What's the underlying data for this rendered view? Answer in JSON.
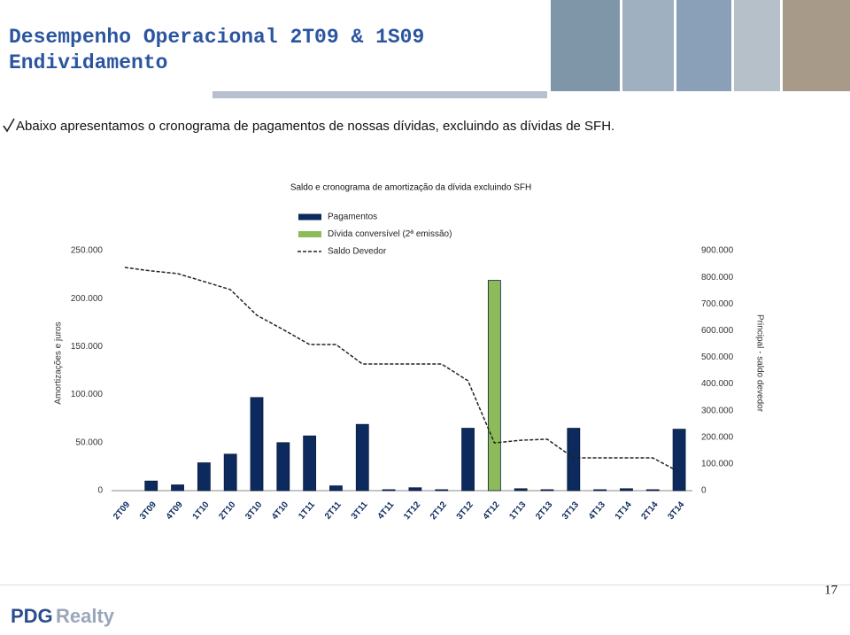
{
  "header": {
    "title": "Desempenho Operacional 2T09 & 1S09",
    "subtitle": "Endividamento"
  },
  "intro": "Abaixo apresentamos o cronograma de pagamentos de nossas dívidas, excluindo as dívidas de SFH.",
  "chart_data": {
    "type": "bar",
    "title": "Saldo e cronograma de amortização da dívida excluindo SFH",
    "ylabel": "Amortizações e juros",
    "y2label": "Principal - saldo devedor",
    "categories": [
      "2T09",
      "3T09",
      "4T09",
      "1T10",
      "2T10",
      "3T10",
      "4T10",
      "1T11",
      "2T11",
      "3T11",
      "4T11",
      "1T12",
      "2T12",
      "3T12",
      "4T12",
      "1T13",
      "2T13",
      "3T13",
      "4T13",
      "1T14",
      "2T14",
      "3T14"
    ],
    "series": [
      {
        "name": "Pagamentos",
        "color": "#0c2a5e",
        "values": [
          0,
          10000,
          6000,
          29000,
          38000,
          97000,
          50000,
          57000,
          5000,
          69000,
          1000,
          3000,
          1000,
          65000,
          null,
          2000,
          1000,
          65000,
          1000,
          2000,
          1000,
          64000
        ]
      },
      {
        "name": "Dívida conversível (2ª emissão)",
        "color": "#8dbb5a",
        "values": [
          null,
          null,
          null,
          null,
          null,
          null,
          null,
          null,
          null,
          null,
          null,
          null,
          null,
          null,
          219000,
          null,
          null,
          null,
          null,
          null,
          null,
          null
        ]
      },
      {
        "name": "Saldo Devedor",
        "type": "line",
        "axis": "y2",
        "color": "#222222",
        "dashed": true,
        "values": [
          837000,
          824000,
          814000,
          784000,
          754000,
          658000,
          604000,
          548000,
          548000,
          475000,
          475000,
          475000,
          475000,
          412000,
          179000,
          189000,
          193000,
          123000,
          123000,
          123000,
          123000,
          70000
        ]
      }
    ],
    "ylim": [
      0,
      250000
    ],
    "yticks": [
      0,
      {
        "value": 50000,
        "label": "50.000"
      },
      {
        "value": 100000,
        "label": "100.000"
      },
      {
        "value": 150000,
        "label": "150.000"
      },
      {
        "value": 200000,
        "label": "200.000"
      },
      {
        "value": 250000,
        "label": "250.000"
      }
    ],
    "y2lim": [
      0,
      900000
    ],
    "y2ticks": [
      0,
      {
        "value": 100000,
        "label": "100.000"
      },
      {
        "value": 200000,
        "label": "200.000"
      },
      {
        "value": 300000,
        "label": "300.000"
      },
      {
        "value": 400000,
        "label": "400.000"
      },
      {
        "value": 500000,
        "label": "500.000"
      },
      {
        "value": 600000,
        "label": "600.000"
      },
      {
        "value": 700000,
        "label": "700.000"
      },
      {
        "value": 800000,
        "label": "800.000"
      },
      {
        "value": 900000,
        "label": "900.000"
      }
    ],
    "grid": false
  },
  "page_number": "17",
  "logo": {
    "brand": "PDG",
    "name": "Realty"
  }
}
